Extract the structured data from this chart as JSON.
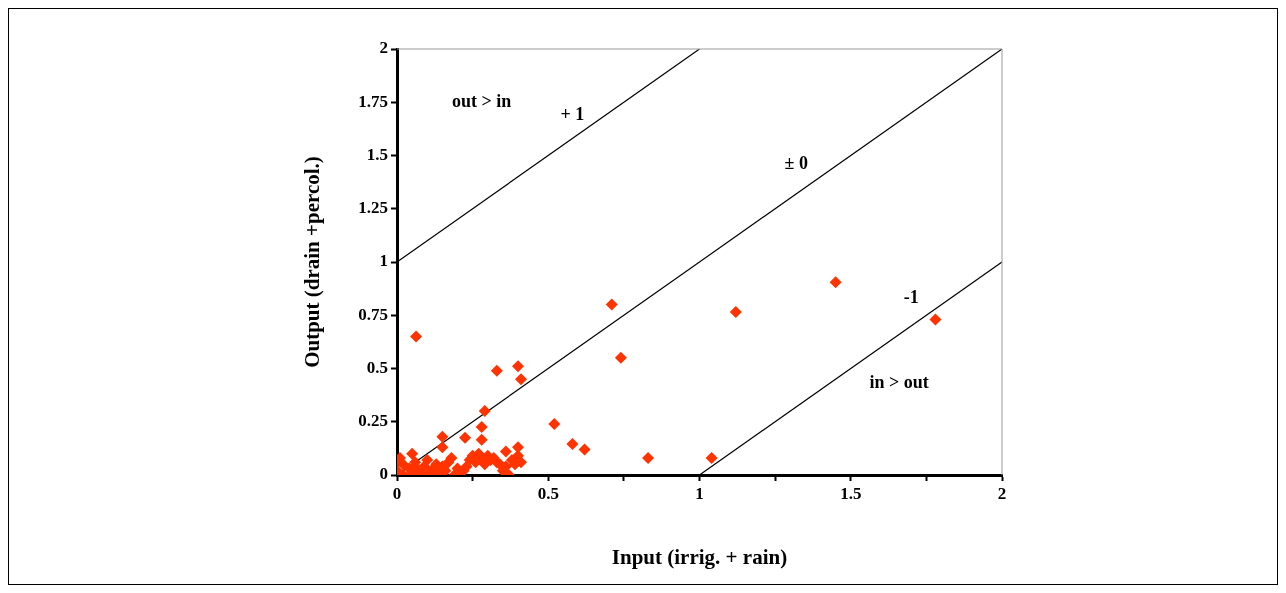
{
  "chart_data": {
    "type": "scatter",
    "xlabel": "Input (irrig. + rain)",
    "ylabel": "Output (drain +percol.)",
    "xlim": [
      0,
      2
    ],
    "ylim": [
      0,
      2
    ],
    "xticks": [
      0,
      {
        "value": 0.25,
        "label": null
      },
      0.5,
      {
        "value": 0.75,
        "label": null
      },
      1,
      {
        "value": 1.25,
        "label": null
      },
      1.5,
      {
        "value": 1.75,
        "label": null
      },
      2
    ],
    "yticks": [
      0,
      0.25,
      0.5,
      0.75,
      1,
      1.25,
      1.5,
      1.75,
      2
    ],
    "grid": false,
    "legend": false,
    "marker": "diamond",
    "series": [
      {
        "color": "#ff3300",
        "x": [
          0.063,
          0.71,
          0.74,
          0.52,
          0.58,
          0.62,
          0.83,
          1.04,
          1.12,
          1.45,
          1.78,
          0.33,
          0.4,
          0.41,
          0.29,
          0.28,
          0.28,
          0.15,
          0.15,
          0.225,
          0.36,
          0.4,
          0,
          0.01,
          0.02,
          0.04,
          0.05,
          0.06,
          0.07,
          0.08,
          0.09,
          0.1,
          0.11,
          0.12,
          0.13,
          0.14,
          0.15,
          0.16,
          0.17,
          0.18,
          0.19,
          0.2,
          0.21,
          0.22,
          0.23,
          0.24,
          0.25,
          0.26,
          0.27,
          0.28,
          0.29,
          0.3,
          0.31,
          0.32,
          0.33,
          0.34,
          0.35,
          0.36,
          0.37,
          0.38,
          0.39,
          0.4,
          0.41,
          0.02,
          0.05,
          0.1,
          0.13,
          0,
          0.06
        ],
        "values": [
          0.65,
          0.8,
          0.55,
          0.24,
          0.145,
          0.12,
          0.08,
          0.08,
          0.765,
          0.905,
          0.73,
          0.49,
          0.51,
          0.45,
          0.3,
          0.225,
          0.165,
          0.18,
          0.13,
          0.175,
          0.11,
          0.13,
          0.02,
          0.08,
          0.05,
          0.03,
          0.1,
          0.06,
          0.02,
          0,
          0.04,
          0.07,
          0.01,
          0.03,
          0.05,
          0,
          0.04,
          0.02,
          0.06,
          0.08,
          0,
          0.03,
          0.01,
          0.02,
          0.04,
          0.07,
          0.09,
          0.06,
          0.1,
          0.08,
          0.05,
          0.09,
          0.07,
          0.08,
          0.06,
          0.05,
          0.02,
          0.04,
          0,
          0.07,
          0.05,
          0.09,
          0.06,
          0,
          0.01,
          0,
          0.02,
          0.06,
          0.04
        ]
      },
      {
        "type": "line",
        "color": "#000000",
        "marker": "none",
        "x": [
          0,
          1
        ],
        "values": [
          1,
          2
        ]
      },
      {
        "type": "line",
        "color": "#000000",
        "marker": "none",
        "x": [
          0,
          2
        ],
        "values": [
          0,
          2
        ]
      },
      {
        "type": "line",
        "color": "#000000",
        "marker": "none",
        "x": [
          1,
          2
        ],
        "values": [
          0,
          1
        ]
      }
    ],
    "annotations": [
      "out > in",
      "+ 1",
      "± 0",
      "-1",
      "in > out"
    ]
  }
}
